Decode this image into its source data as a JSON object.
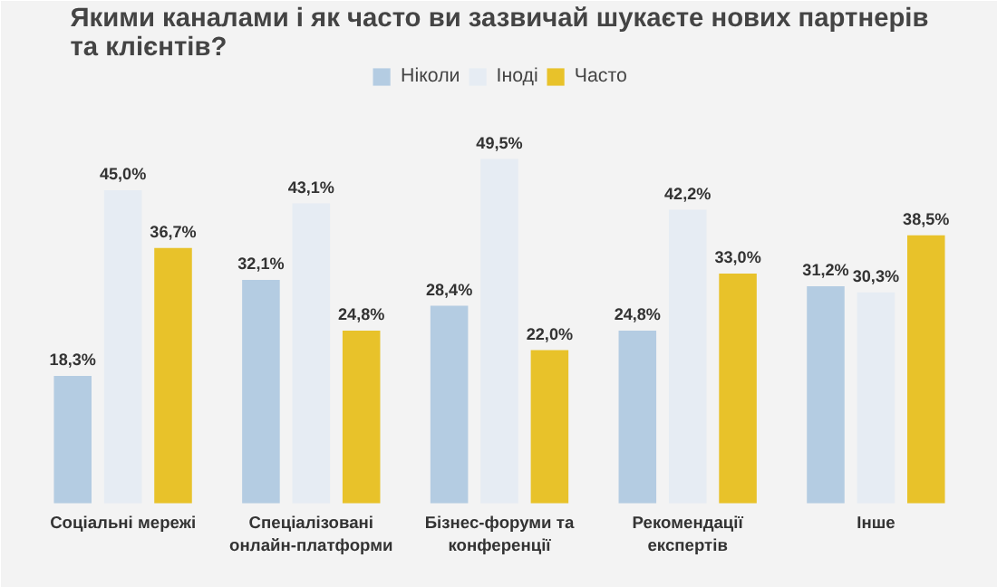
{
  "chart_data": {
    "type": "bar",
    "title": "Якими каналами і як часто ви зазвичай шукаєте нових партнерів та клієнтів?",
    "categories": [
      "Соціальні мережі",
      "Спеціалізовані онлайн-платформи",
      "Бізнес-форуми та конференції",
      "Рекомендації експертів",
      "Інше"
    ],
    "series": [
      {
        "name": "Ніколи",
        "color": "#b4cce2",
        "values": [
          18.3,
          32.1,
          28.4,
          24.8,
          31.2
        ],
        "value_labels": [
          "18,3%",
          "32,1%",
          "28,4%",
          "24,8%",
          "31,2%"
        ]
      },
      {
        "name": "Іноді",
        "color": "#e6ecf3",
        "values": [
          45.0,
          43.1,
          49.5,
          42.2,
          30.3
        ],
        "value_labels": [
          "45,0%",
          "43,1%",
          "49,5%",
          "42,2%",
          "30,3%"
        ]
      },
      {
        "name": "Часто",
        "color": "#e8c22a",
        "values": [
          36.7,
          24.8,
          22.0,
          33.0,
          38.5
        ],
        "value_labels": [
          "36,7%",
          "24,8%",
          "22,0%",
          "33,0%",
          "38,5%"
        ]
      }
    ],
    "legend": "top"
  }
}
